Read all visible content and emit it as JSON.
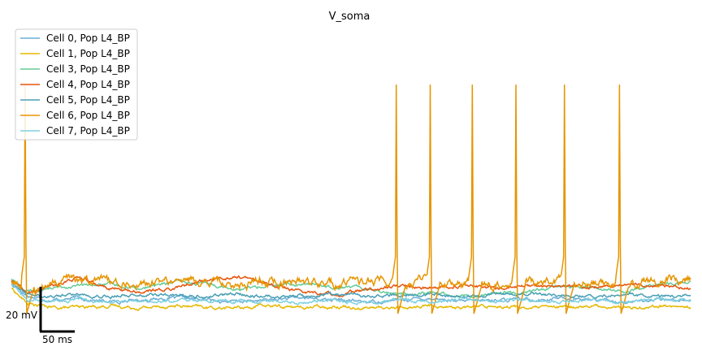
{
  "chart_data": {
    "type": "line",
    "title": "V_soma",
    "x_unit": "ms",
    "y_unit": "mV",
    "xlim": [
      0,
      420
    ],
    "ylim": [
      -82,
      50
    ],
    "grid": false,
    "legend_position": "top-left",
    "scalebar": {
      "x_label": "50 ms",
      "x_value": 50,
      "y_label": "20 mV",
      "y_value": 20
    },
    "series": [
      {
        "name": "Cell 0, Pop L4_BP",
        "color": "#6baed6",
        "x": [
          0,
          10,
          25,
          40,
          60,
          80,
          100,
          120,
          140,
          160,
          180,
          200,
          220,
          240,
          260,
          280,
          300,
          320,
          340,
          360,
          380,
          400,
          420
        ],
        "y": [
          -61,
          -68,
          -70,
          -69,
          -71,
          -70,
          -69,
          -70,
          -71,
          -70,
          -69,
          -70,
          -71,
          -70,
          -69,
          -71,
          -70,
          -70,
          -69,
          -70,
          -71,
          -70,
          -70
        ],
        "spikes": []
      },
      {
        "name": "Cell 1, Pop L4_BP",
        "color": "#e6b800",
        "x": [
          0,
          10,
          25,
          40,
          60,
          80,
          100,
          120,
          140,
          160,
          180,
          200,
          220,
          240,
          260,
          280,
          300,
          320,
          340,
          360,
          380,
          400,
          420
        ],
        "y": [
          -64,
          -72,
          -74,
          -74,
          -73,
          -74,
          -73,
          -74,
          -74,
          -73,
          -74,
          -73,
          -74,
          -74,
          -73,
          -74,
          -73,
          -74,
          -74,
          -73,
          -74,
          -73,
          -74
        ],
        "spikes": []
      },
      {
        "name": "Cell 3, Pop L4_BP",
        "color": "#66cc99",
        "x": [
          0,
          10,
          25,
          40,
          60,
          80,
          100,
          120,
          140,
          160,
          180,
          200,
          220,
          240,
          260,
          280,
          300,
          320,
          340,
          360,
          380,
          400,
          420
        ],
        "y": [
          -59,
          -66,
          -64,
          -63,
          -62,
          -64,
          -61,
          -62,
          -64,
          -63,
          -62,
          -63,
          -64,
          -67,
          -66,
          -68,
          -67,
          -66,
          -63,
          -64,
          -66,
          -62,
          -61
        ],
        "spikes": []
      },
      {
        "name": "Cell 4, Pop L4_BP",
        "color": "#e6550d",
        "x": [
          0,
          10,
          25,
          40,
          60,
          80,
          100,
          120,
          140,
          160,
          180,
          200,
          220,
          240,
          260,
          280,
          300,
          320,
          340,
          360,
          380,
          400,
          420
        ],
        "y": [
          -60,
          -67,
          -63,
          -59,
          -64,
          -66,
          -64,
          -60,
          -58,
          -62,
          -66,
          -67,
          -65,
          -63,
          -64,
          -63,
          -64,
          -63,
          -63,
          -63,
          -62,
          -63,
          -64
        ],
        "spikes": []
      },
      {
        "name": "Cell 5, Pop L4_BP",
        "color": "#4a9fb5",
        "x": [
          0,
          10,
          25,
          40,
          60,
          80,
          100,
          120,
          140,
          160,
          180,
          200,
          220,
          240,
          260,
          280,
          300,
          320,
          340,
          360,
          380,
          400,
          420
        ],
        "y": [
          -62,
          -67,
          -68,
          -67,
          -68,
          -67,
          -68,
          -68,
          -67,
          -68,
          -68,
          -67,
          -68,
          -68,
          -67,
          -68,
          -68,
          -67,
          -68,
          -68,
          -67,
          -68,
          -68
        ],
        "spikes": []
      },
      {
        "name": "Cell 6, Pop L4_BP",
        "color": "#e69500",
        "x": [
          0,
          10,
          25,
          40,
          60,
          80,
          100,
          120,
          140,
          160,
          180,
          200,
          220,
          240,
          260,
          280,
          300,
          320,
          340,
          360,
          380,
          400,
          420
        ],
        "y": [
          -61,
          -66,
          -62,
          -60,
          -61,
          -62,
          -60,
          -61,
          -62,
          -60,
          -61,
          -62,
          -61,
          -62,
          -60,
          -61,
          -62,
          -61,
          -60,
          -62,
          -61,
          -60,
          -59
        ],
        "spikes": [
          8.5,
          238,
          259,
          285,
          312,
          342,
          376
        ]
      },
      {
        "name": "Cell 7, Pop L4_BP",
        "color": "#7fd0e0",
        "x": [
          0,
          10,
          25,
          40,
          60,
          80,
          100,
          120,
          140,
          160,
          180,
          200,
          220,
          240,
          260,
          280,
          300,
          320,
          340,
          360,
          380,
          400,
          420
        ],
        "y": [
          -62,
          -70,
          -71,
          -70,
          -71,
          -70,
          -71,
          -70,
          -71,
          -70,
          -71,
          -70,
          -71,
          -70,
          -71,
          -70,
          -71,
          -70,
          -71,
          -70,
          -71,
          -70,
          -70
        ],
        "spikes": []
      }
    ]
  }
}
